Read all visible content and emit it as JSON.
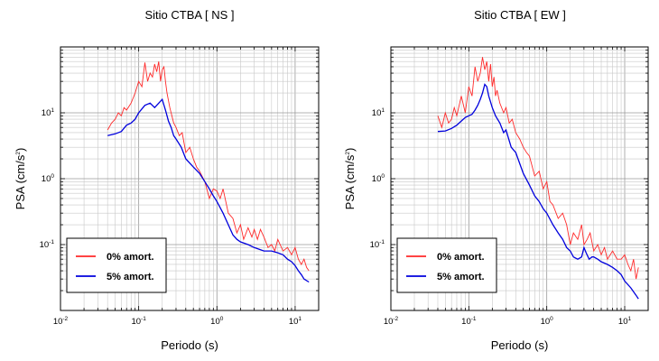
{
  "colors": {
    "red": "#ff2a2a",
    "blue": "#0000dd",
    "grid": "#9a9a9a",
    "minorgrid": "#c8c8c8"
  },
  "chart_data": [
    {
      "type": "line",
      "title": "Sitio CTBA [ NS ]",
      "xlabel": "Periodo (s)",
      "ylabel_main": "PSA (cm/s",
      "ylabel_sup": "2",
      "ylabel_tail": ")",
      "xscale": "log",
      "yscale": "log",
      "xlim": [
        0.01,
        20
      ],
      "ylim": [
        0.01,
        100
      ],
      "grid": true,
      "legend_position": "bottom-left",
      "x_ticks": [
        {
          "base": "10",
          "exp": "-2",
          "value": 0.01
        },
        {
          "base": "10",
          "exp": "-1",
          "value": 0.1
        },
        {
          "base": "10",
          "exp": "0",
          "value": 1
        },
        {
          "base": "10",
          "exp": "1",
          "value": 10
        }
      ],
      "y_ticks": [
        {
          "base": "10",
          "exp": "-1",
          "value": 0.1
        },
        {
          "base": "10",
          "exp": "0",
          "value": 1
        },
        {
          "base": "10",
          "exp": "1",
          "value": 10
        }
      ],
      "series": [
        {
          "name": "0% amort.",
          "color": "#ff2a2a",
          "x": [
            0.04,
            0.045,
            0.05,
            0.055,
            0.06,
            0.065,
            0.07,
            0.08,
            0.09,
            0.1,
            0.11,
            0.12,
            0.13,
            0.14,
            0.15,
            0.16,
            0.17,
            0.18,
            0.19,
            0.2,
            0.21,
            0.22,
            0.23,
            0.25,
            0.28,
            0.3,
            0.33,
            0.36,
            0.4,
            0.45,
            0.5,
            0.55,
            0.6,
            0.7,
            0.8,
            0.9,
            1.0,
            1.1,
            1.2,
            1.4,
            1.6,
            1.8,
            2.0,
            2.2,
            2.5,
            2.8,
            3.0,
            3.3,
            3.6,
            4.0,
            4.5,
            5.0,
            5.5,
            6.0,
            7.0,
            8.0,
            9.0,
            10.0,
            11.0,
            12.0,
            13.0,
            14.0,
            15.0
          ],
          "y": [
            5.5,
            7,
            8,
            10,
            9,
            12,
            11,
            14,
            20,
            30,
            25,
            58,
            30,
            40,
            35,
            55,
            42,
            60,
            30,
            45,
            50,
            30,
            20,
            12,
            7,
            6,
            4.5,
            5,
            2.5,
            3,
            2,
            1.5,
            1.3,
            0.9,
            0.5,
            0.7,
            0.65,
            0.5,
            0.7,
            0.3,
            0.25,
            0.15,
            0.2,
            0.12,
            0.18,
            0.13,
            0.17,
            0.12,
            0.17,
            0.13,
            0.09,
            0.1,
            0.08,
            0.12,
            0.08,
            0.09,
            0.07,
            0.09,
            0.06,
            0.05,
            0.06,
            0.045,
            0.04
          ]
        },
        {
          "name": "5% amort.",
          "color": "#0000dd",
          "x": [
            0.04,
            0.05,
            0.06,
            0.07,
            0.08,
            0.09,
            0.1,
            0.12,
            0.14,
            0.16,
            0.18,
            0.2,
            0.22,
            0.24,
            0.26,
            0.28,
            0.3,
            0.35,
            0.4,
            0.5,
            0.6,
            0.7,
            0.8,
            0.9,
            1.0,
            1.2,
            1.4,
            1.6,
            1.8,
            2.0,
            2.5,
            3.0,
            4.0,
            5.0,
            6.0,
            7.0,
            8.0,
            9.0,
            10.0,
            11.0,
            12.0,
            13.0,
            15.0
          ],
          "y": [
            4.5,
            4.8,
            5.2,
            6.5,
            7,
            8,
            10,
            13,
            14,
            12,
            14,
            16,
            11,
            7.5,
            6,
            4.5,
            4,
            3,
            2,
            1.5,
            1.2,
            0.9,
            0.7,
            0.55,
            0.45,
            0.3,
            0.2,
            0.14,
            0.12,
            0.11,
            0.1,
            0.09,
            0.08,
            0.08,
            0.075,
            0.07,
            0.06,
            0.055,
            0.048,
            0.04,
            0.035,
            0.03,
            0.027
          ]
        }
      ]
    },
    {
      "type": "line",
      "title": "Sitio CTBA [ EW ]",
      "xlabel": "Periodo (s)",
      "ylabel_main": "PSA (cm/s",
      "ylabel_sup": "2",
      "ylabel_tail": ")",
      "xscale": "log",
      "yscale": "log",
      "xlim": [
        0.01,
        20
      ],
      "ylim": [
        0.01,
        100
      ],
      "grid": true,
      "legend_position": "bottom-left",
      "x_ticks": [
        {
          "base": "10",
          "exp": "-2",
          "value": 0.01
        },
        {
          "base": "10",
          "exp": "-1",
          "value": 0.1
        },
        {
          "base": "10",
          "exp": "0",
          "value": 1
        },
        {
          "base": "10",
          "exp": "1",
          "value": 10
        }
      ],
      "y_ticks": [
        {
          "base": "10",
          "exp": "-1",
          "value": 0.1
        },
        {
          "base": "10",
          "exp": "0",
          "value": 1
        },
        {
          "base": "10",
          "exp": "1",
          "value": 10
        }
      ],
      "series": [
        {
          "name": "0% amort.",
          "color": "#ff2a2a",
          "x": [
            0.04,
            0.045,
            0.05,
            0.055,
            0.06,
            0.065,
            0.07,
            0.08,
            0.09,
            0.1,
            0.11,
            0.12,
            0.13,
            0.14,
            0.15,
            0.16,
            0.17,
            0.18,
            0.19,
            0.2,
            0.21,
            0.22,
            0.23,
            0.25,
            0.28,
            0.3,
            0.33,
            0.36,
            0.4,
            0.45,
            0.5,
            0.55,
            0.6,
            0.7,
            0.8,
            0.9,
            1.0,
            1.1,
            1.2,
            1.4,
            1.6,
            1.8,
            2.0,
            2.2,
            2.5,
            2.8,
            3.0,
            3.3,
            3.6,
            4.0,
            4.5,
            5.0,
            5.5,
            6.0,
            7.0,
            8.0,
            9.0,
            10.0,
            11.0,
            12.0,
            13.0,
            14.0,
            15.0
          ],
          "y": [
            9,
            6,
            10,
            7,
            8,
            12,
            9,
            18,
            10,
            25,
            18,
            50,
            30,
            40,
            70,
            45,
            60,
            30,
            55,
            25,
            35,
            18,
            22,
            14,
            10,
            12,
            7,
            8,
            5,
            4,
            3,
            2.5,
            2.2,
            1.1,
            1.3,
            0.7,
            0.9,
            0.45,
            0.4,
            0.25,
            0.3,
            0.2,
            0.1,
            0.15,
            0.12,
            0.2,
            0.1,
            0.12,
            0.15,
            0.08,
            0.1,
            0.07,
            0.09,
            0.06,
            0.08,
            0.06,
            0.06,
            0.07,
            0.05,
            0.04,
            0.06,
            0.03,
            0.045
          ]
        },
        {
          "name": "5% amort.",
          "color": "#0000dd",
          "x": [
            0.04,
            0.05,
            0.06,
            0.07,
            0.08,
            0.09,
            0.1,
            0.11,
            0.12,
            0.13,
            0.14,
            0.15,
            0.16,
            0.17,
            0.18,
            0.2,
            0.22,
            0.25,
            0.28,
            0.3,
            0.35,
            0.4,
            0.5,
            0.6,
            0.7,
            0.8,
            0.9,
            1.0,
            1.2,
            1.4,
            1.6,
            1.8,
            2.0,
            2.2,
            2.5,
            2.8,
            3.0,
            3.2,
            3.5,
            3.8,
            4.0,
            4.5,
            5.0,
            6.0,
            7.0,
            8.0,
            9.0,
            10.0,
            12.0,
            14.0,
            15.0
          ],
          "y": [
            5.2,
            5.3,
            5.8,
            6.5,
            7.5,
            8.5,
            9,
            9.5,
            11,
            13,
            16,
            20,
            27,
            25,
            18,
            12,
            9,
            7,
            5,
            5.5,
            3,
            2.5,
            1.2,
            0.8,
            0.55,
            0.45,
            0.35,
            0.3,
            0.2,
            0.15,
            0.12,
            0.09,
            0.08,
            0.065,
            0.06,
            0.065,
            0.09,
            0.075,
            0.06,
            0.065,
            0.065,
            0.06,
            0.055,
            0.05,
            0.045,
            0.04,
            0.035,
            0.028,
            0.022,
            0.017,
            0.015
          ]
        }
      ]
    }
  ]
}
